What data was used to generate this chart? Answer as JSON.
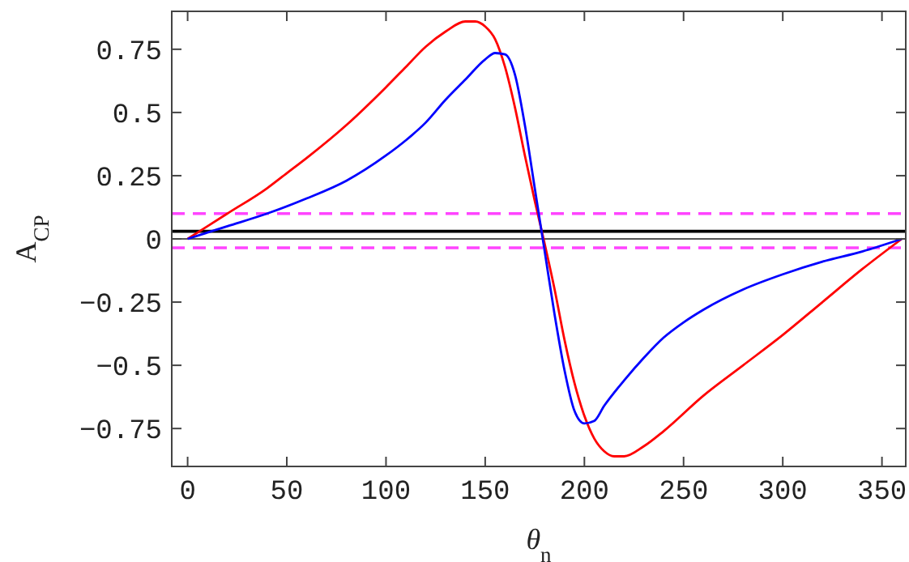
{
  "chart_data": {
    "type": "line",
    "xlabel": "θ$_{n}$",
    "ylabel": "A$_{CP}$",
    "xlim": [
      -8,
      362
    ],
    "xticks": [
      0,
      50,
      100,
      150,
      200,
      250,
      300,
      350
    ],
    "ylim": [
      -0.9,
      0.9
    ],
    "yticks": [
      {
        "value": -0.75,
        "label": "−0.75"
      },
      {
        "value": -0.5,
        "label": "−0.5"
      },
      {
        "value": -0.25,
        "label": "−0.25"
      },
      0,
      0.25,
      0.5,
      0.75
    ],
    "grid": false,
    "line_style": "solid",
    "ref_lines": [
      {
        "axis": "y",
        "value": 0,
        "color": "#555555",
        "line_style": "solid"
      },
      {
        "axis": "y",
        "value": 0.03,
        "color": "#000000",
        "line_style": "solid"
      },
      {
        "axis": "y",
        "value": 0.1,
        "color": "#ff44ff",
        "line_style": "dashed"
      },
      {
        "axis": "y",
        "value": -0.035,
        "color": "#ff44ff",
        "line_style": "dashed"
      }
    ],
    "series": [
      {
        "color": "#ff0000",
        "x": [
          0,
          10,
          20,
          40,
          50,
          60,
          80,
          100,
          110,
          120,
          130,
          140,
          145,
          150,
          155,
          160,
          165,
          170,
          175,
          180,
          185,
          190,
          195,
          200,
          205,
          210,
          215,
          220,
          230,
          240,
          260,
          280,
          300,
          320,
          340,
          360
        ],
        "values": [
          0,
          0.05,
          0.1,
          0.2,
          0.26,
          0.32,
          0.45,
          0.6,
          0.68,
          0.76,
          0.82,
          0.86,
          0.86,
          0.84,
          0.79,
          0.68,
          0.52,
          0.33,
          0.15,
          -0.02,
          -0.2,
          -0.4,
          -0.57,
          -0.7,
          -0.79,
          -0.84,
          -0.86,
          -0.86,
          -0.82,
          -0.76,
          -0.62,
          -0.5,
          -0.38,
          -0.25,
          -0.12,
          0
        ]
      },
      {
        "color": "#0000ff",
        "x": [
          0,
          20,
          40,
          60,
          80,
          100,
          110,
          120,
          130,
          140,
          150,
          155,
          160,
          165,
          170,
          175,
          180,
          185,
          190,
          195,
          200,
          205,
          210,
          220,
          230,
          240,
          250,
          260,
          280,
          300,
          320,
          340,
          360
        ],
        "values": [
          0,
          0.05,
          0.1,
          0.16,
          0.23,
          0.33,
          0.39,
          0.46,
          0.55,
          0.63,
          0.71,
          0.735,
          0.73,
          0.65,
          0.45,
          0.2,
          -0.05,
          -0.3,
          -0.52,
          -0.68,
          -0.73,
          -0.72,
          -0.66,
          -0.56,
          -0.47,
          -0.39,
          -0.33,
          -0.28,
          -0.2,
          -0.14,
          -0.09,
          -0.05,
          0
        ]
      }
    ]
  }
}
